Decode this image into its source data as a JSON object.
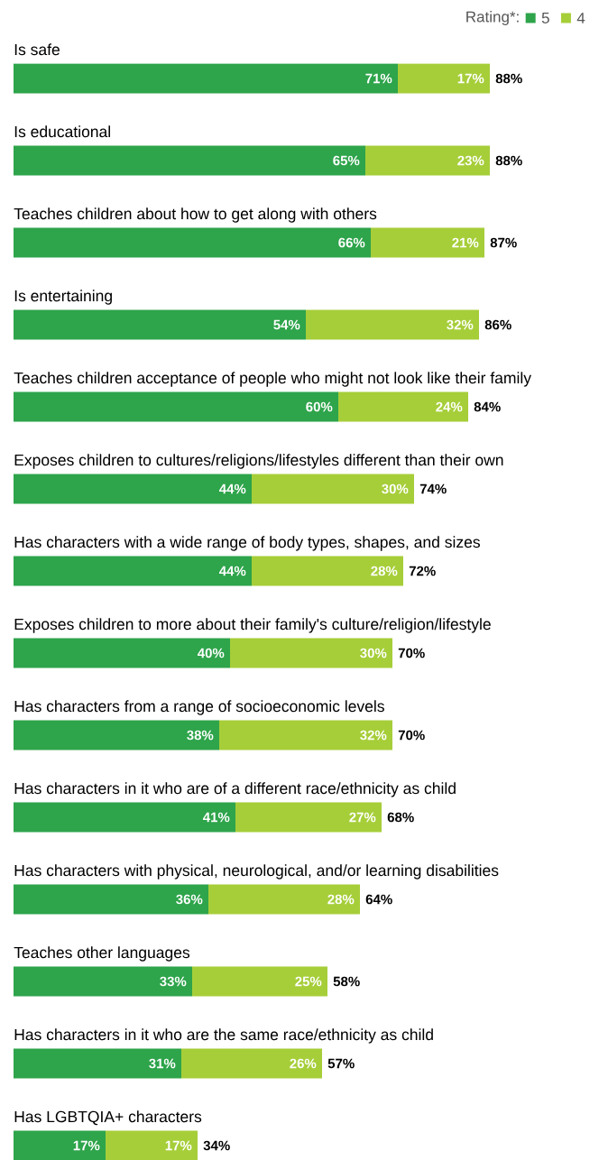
{
  "chart_data": {
    "type": "bar",
    "orientation": "horizontal",
    "stacked": true,
    "legend": "top right",
    "legend_title": "Rating*:",
    "categories": [
      "Is safe",
      "Is educational",
      "Teaches children about how to get along with others",
      "Is entertaining",
      "Teaches children acceptance of people who might not look like their family",
      "Exposes children to cultures/religions/lifestyles different than their own",
      "Has characters with a wide range of body types, shapes, and sizes",
      "Exposes children to more about their family's culture/religion/lifestyle",
      "Has characters from a range of socioeconomic levels",
      "Has characters in it who are of a different race/ethnicity as child",
      "Has characters with physical, neurological, and/or learning disabilities",
      "Teaches other languages",
      "Has characters in it who are the same race/ethnicity as child",
      "Has LGBTQIA+ characters"
    ],
    "series": [
      {
        "name": "5",
        "color": "#2ea44b",
        "values": [
          71,
          65,
          66,
          54,
          60,
          44,
          44,
          40,
          38,
          41,
          36,
          33,
          31,
          17
        ],
        "value_labels": [
          "71%",
          "65%",
          "66%",
          "54%",
          "60%",
          "44%",
          "44%",
          "40%",
          "38%",
          "41%",
          "36%",
          "33%",
          "31%",
          "17%"
        ]
      },
      {
        "name": "4",
        "color": "#a6ce39",
        "values": [
          17,
          23,
          21,
          32,
          24,
          30,
          28,
          30,
          32,
          27,
          28,
          25,
          26,
          17
        ],
        "value_labels": [
          "17%",
          "23%",
          "21%",
          "32%",
          "24%",
          "30%",
          "28%",
          "30%",
          "32%",
          "27%",
          "28%",
          "25%",
          "26%",
          "17%"
        ]
      }
    ],
    "totals": [
      "88%",
      "88%",
      "87%",
      "86%",
      "84%",
      "74%",
      "72%",
      "70%",
      "70%",
      "68%",
      "64%",
      "58%",
      "57%",
      "34%"
    ]
  }
}
